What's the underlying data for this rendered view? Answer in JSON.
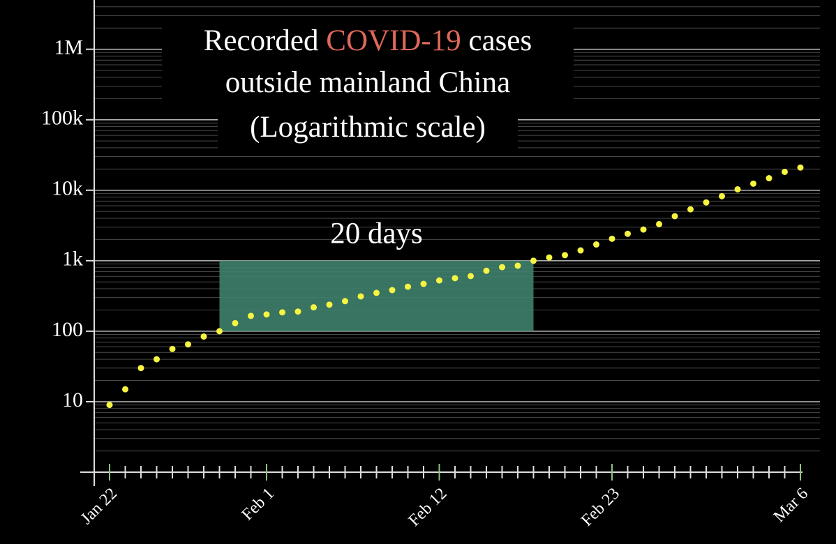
{
  "chart_data": {
    "type": "scatter",
    "title": [
      "Recorded",
      "COVID-19",
      "cases"
    ],
    "title_line2": "outside mainland China",
    "subtitle": "(Logarithmic scale)",
    "title_color": "#ffffff",
    "highlight_color": "#e0685a",
    "subtitle_color": "#7fc8a9",
    "categories": [
      "Jan 22",
      null,
      null,
      null,
      null,
      null,
      null,
      null,
      null,
      null,
      "Feb 1",
      null,
      null,
      null,
      null,
      null,
      null,
      null,
      null,
      null,
      null,
      "Feb 12",
      null,
      null,
      null,
      null,
      null,
      null,
      null,
      null,
      null,
      null,
      "Feb 23",
      null,
      null,
      null,
      null,
      null,
      null,
      null,
      null,
      null,
      null,
      null,
      "Mar 6"
    ],
    "values": [
      9,
      15,
      30,
      40,
      56,
      65,
      84,
      100,
      130,
      165,
      173,
      185,
      190,
      218,
      238,
      267,
      312,
      350,
      383,
      428,
      469,
      525,
      565,
      605,
      720,
      810,
      850,
      1000,
      1110,
      1200,
      1400,
      1700,
      2050,
      2410,
      2770,
      3300,
      4280,
      5360,
      6720,
      8220,
      10300,
      12400,
      14800,
      18200,
      21000
    ],
    "color": "#f5f542",
    "log_scale": true,
    "ylim": [
      1,
      5000000
    ],
    "yticks": [
      10,
      100,
      {
        "value": 1000,
        "label": "1k"
      },
      {
        "value": 10000,
        "label": "10k"
      },
      {
        "value": 100000,
        "label": "100k"
      },
      {
        "value": 1000000,
        "label": "1M"
      }
    ],
    "minor_yticks": [
      2,
      3,
      4,
      5,
      6,
      7,
      8,
      9,
      20,
      30,
      40,
      50,
      60,
      70,
      80,
      90,
      200,
      300,
      400,
      500,
      600,
      700,
      800,
      900,
      2000,
      3000,
      4000,
      5000,
      6000,
      7000,
      8000,
      9000,
      20000,
      30000,
      40000,
      50000,
      60000,
      70000,
      80000,
      90000,
      200000,
      300000,
      400000,
      500000,
      600000,
      700000,
      800000,
      900000,
      2000000,
      3000000,
      4000000
    ],
    "grid": true,
    "highlight": {
      "label": "20 days",
      "x_start": 7,
      "x_end": 27,
      "y_start": 100,
      "y_end": 1000,
      "color": "#3f7f6c"
    }
  }
}
